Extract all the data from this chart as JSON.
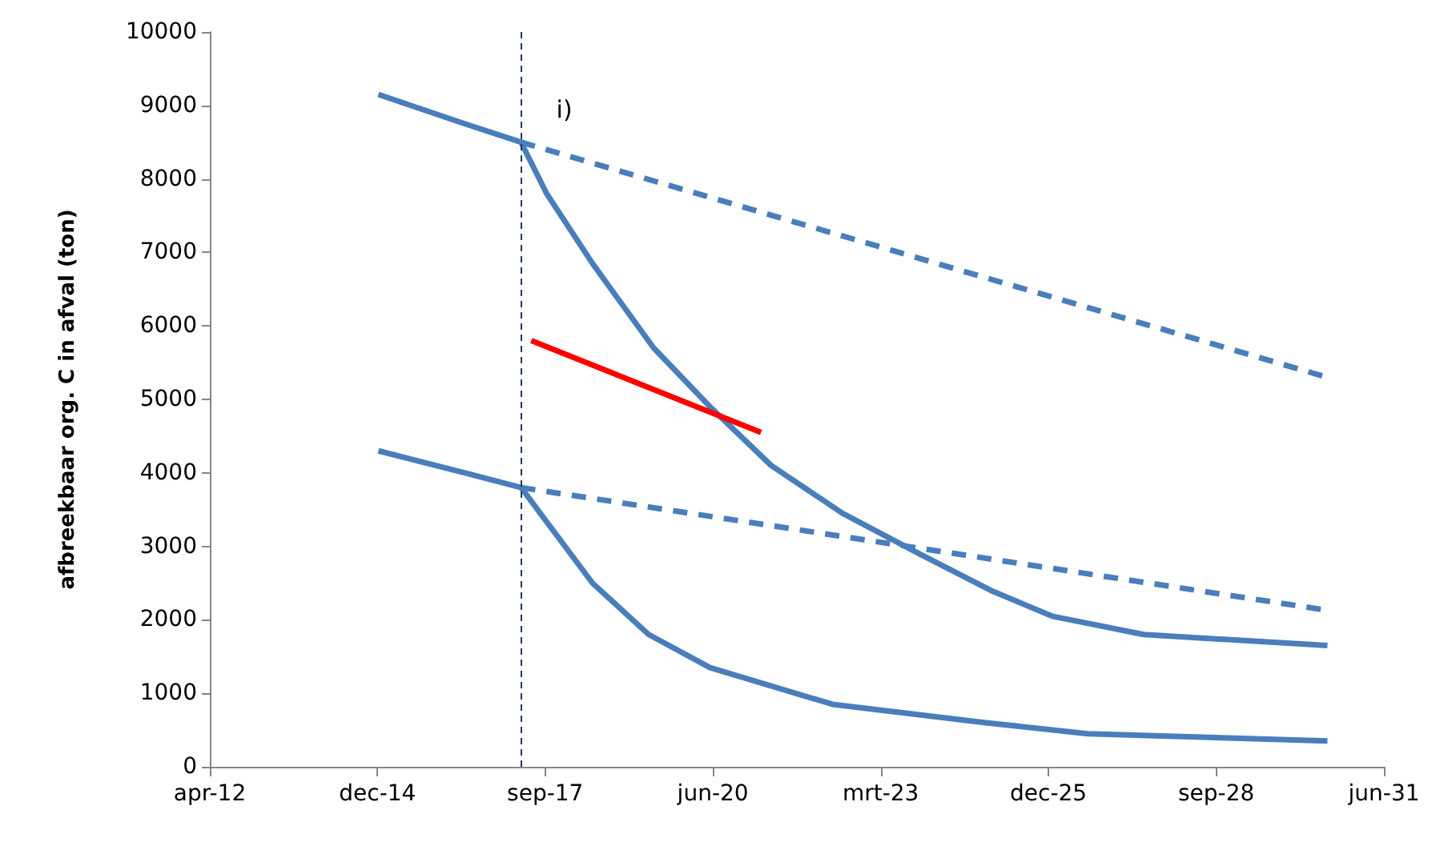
{
  "chart_data": {
    "type": "line",
    "ylabel": "afbreekbaar org. C in afval (ton)",
    "xlim": [
      "2012-04-01",
      "2031-06-03"
    ],
    "xticks": [
      {
        "value": "2012-04-01",
        "label": "apr-12"
      },
      {
        "value": "2014-12-27",
        "label": "dec-14"
      },
      {
        "value": "2017-09-22",
        "label": "sep-17"
      },
      {
        "value": "2020-06-18",
        "label": "jun-20"
      },
      {
        "value": "2023-03-16",
        "label": "mrt-23"
      },
      {
        "value": "2025-12-10",
        "label": "dec-25"
      },
      {
        "value": "2028-09-06",
        "label": "sep-28"
      },
      {
        "value": "2031-06-03",
        "label": "jun-31"
      }
    ],
    "ylim": [
      0,
      10000
    ],
    "yticks": [
      0,
      1000,
      2000,
      3000,
      4000,
      5000,
      6000,
      7000,
      8000,
      9000,
      10000
    ],
    "grid": false,
    "marker": "none",
    "series": [
      {
        "color": "#4a7ebb",
        "line_style": "solid",
        "x": [
          "2015-01",
          "2016-06",
          "2017-05",
          "2017-10",
          "2018-07",
          "2019-07",
          "2020-06",
          "2021-06",
          "2022-08",
          "2023-11",
          "2025-01",
          "2026-01",
          "2027-07",
          "2030-07"
        ],
        "values": [
          9150,
          8750,
          8500,
          7800,
          6850,
          5700,
          4900,
          4100,
          3450,
          2900,
          2400,
          2050,
          1800,
          1650
        ]
      },
      {
        "color": "#4a7ebb",
        "line_style": "dashed",
        "x": [
          "2017-05",
          "2030-07"
        ],
        "values": [
          8500,
          5300
        ]
      },
      {
        "color": "#4a7ebb",
        "line_style": "solid",
        "x": [
          "2015-01",
          "2016-06",
          "2017-05",
          "2018-07",
          "2019-06",
          "2020-06",
          "2022-06",
          "2024-12",
          "2026-08",
          "2030-07"
        ],
        "values": [
          4300,
          4000,
          3800,
          2500,
          1800,
          1350,
          850,
          600,
          450,
          350
        ]
      },
      {
        "color": "#4a7ebb",
        "line_style": "dashed",
        "x": [
          "2017-05",
          "2030-07"
        ],
        "values": [
          3800,
          2130
        ]
      },
      {
        "color": "#ff0000",
        "line_style": "solid",
        "x": [
          "2017-07",
          "2021-04"
        ],
        "values": [
          5800,
          4550
        ]
      }
    ],
    "ref_lines": [
      {
        "axis": "x",
        "value": "2017-05",
        "color": "#1f3864",
        "line_style": "dashed"
      }
    ],
    "annotations": [
      {
        "text": "i)",
        "x": "2017-05",
        "y": 8500
      }
    ]
  }
}
